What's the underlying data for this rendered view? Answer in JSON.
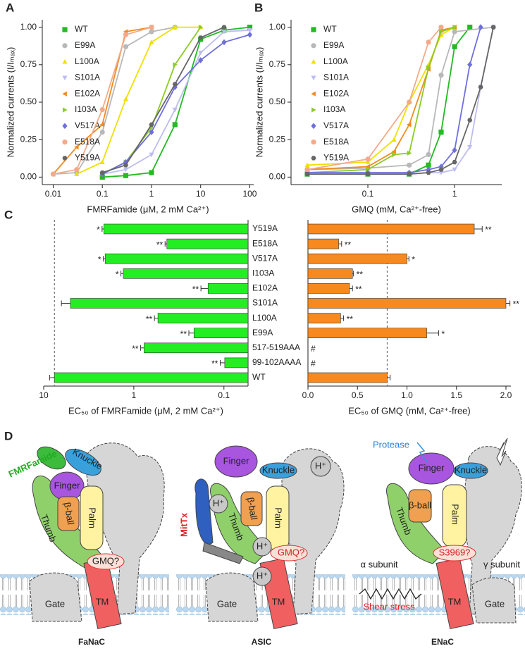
{
  "chart_data": [
    {
      "type": "line",
      "panel_label": "A",
      "xlabel": "FMRFamide (μM, 2 mM Ca²⁺)",
      "ylabel": "Normalized currents (I/Iₘₐₓ)",
      "xlog": true,
      "xlim": [
        0.006,
        120
      ],
      "xticks": [
        0.01,
        0.1,
        1,
        10,
        100
      ],
      "ylim": [
        -0.05,
        1.05
      ],
      "yticks": [
        {
          "value": 0,
          "label": "0.00"
        },
        0.25,
        {
          "value": 0.5,
          "label": "0.50"
        },
        0.75,
        {
          "value": 1,
          "label": "1.00"
        }
      ],
      "series": [
        {
          "name": "WT",
          "color": "#22bb22",
          "marker": "square",
          "x": [
            0.1,
            0.3,
            1,
            3,
            10,
            30,
            100
          ],
          "values": [
            0.0,
            0.01,
            0.03,
            0.35,
            0.92,
            0.98,
            1.0
          ]
        },
        {
          "name": "E99A",
          "color": "#b8b8b8",
          "marker": "circle",
          "x": [
            0.01,
            0.03,
            0.1,
            0.3,
            1,
            3
          ],
          "values": [
            0.02,
            0.03,
            0.3,
            0.87,
            0.97,
            1.0
          ]
        },
        {
          "name": "L100A",
          "color": "#f0e000",
          "marker": "triangle-up",
          "x": [
            0.03,
            0.1,
            0.3,
            1,
            3,
            10
          ],
          "values": [
            0.02,
            0.1,
            0.52,
            0.9,
            1.0,
            1.0
          ]
        },
        {
          "name": "S101A",
          "color": "#bcbcf0",
          "marker": "triangle-down",
          "x": [
            0.1,
            0.3,
            1,
            3,
            10,
            30,
            100
          ],
          "values": [
            0.02,
            0.05,
            0.15,
            0.45,
            0.83,
            0.97,
            0.98
          ]
        },
        {
          "name": "E102A",
          "color": "#f08c1e",
          "marker": "triangle-left",
          "x": [
            0.01,
            0.03,
            0.1,
            0.3,
            1
          ],
          "values": [
            0.02,
            0.2,
            0.35,
            0.97,
            1.0
          ]
        },
        {
          "name": "I103A",
          "color": "#8ccc22",
          "marker": "triangle-right",
          "x": [
            0.1,
            0.3,
            1,
            3,
            10
          ],
          "values": [
            0.02,
            0.1,
            0.33,
            0.75,
            1.0
          ]
        },
        {
          "name": "V517A",
          "color": "#6f6fdc",
          "marker": "diamond",
          "x": [
            0.1,
            0.3,
            1,
            3,
            10,
            30,
            100
          ],
          "values": [
            0.02,
            0.1,
            0.3,
            0.6,
            0.78,
            0.9,
            0.95
          ]
        },
        {
          "name": "E518A",
          "color": "#f4a98a",
          "marker": "circle",
          "x": [
            0.01,
            0.03,
            0.1,
            0.3,
            1
          ],
          "values": [
            0.02,
            0.05,
            0.45,
            0.95,
            1.0
          ]
        },
        {
          "name": "Y519A",
          "color": "#666666",
          "marker": "hexagon",
          "x": [
            0.1,
            0.3,
            1,
            3,
            10,
            30
          ],
          "values": [
            0.03,
            0.08,
            0.35,
            0.62,
            0.93,
            1.0
          ]
        }
      ]
    },
    {
      "type": "line",
      "panel_label": "B",
      "xlabel": "GMQ (mM, Ca²⁺-free)",
      "ylabel": "Normalized currents (I/Iₘₐₓ)",
      "xlog": true,
      "xlim": [
        0.013,
        3.5
      ],
      "xticks": [
        0.1,
        1
      ],
      "ylim": [
        -0.05,
        1.05
      ],
      "yticks": [
        {
          "value": 0,
          "label": "0.00"
        },
        0.25,
        {
          "value": 0.5,
          "label": "0.50"
        },
        0.75,
        {
          "value": 1,
          "label": "1.00"
        }
      ],
      "series": [
        {
          "name": "WT",
          "color": "#22bb22",
          "marker": "square",
          "x": [
            0.02,
            0.1,
            0.3,
            0.5,
            0.7,
            1,
            1.5
          ],
          "values": [
            0.02,
            0.02,
            0.02,
            0.08,
            0.3,
            0.87,
            1.0
          ]
        },
        {
          "name": "E99A",
          "color": "#b8b8b8",
          "marker": "circle",
          "x": [
            0.02,
            0.1,
            0.3,
            0.5,
            0.7,
            1,
            2.8
          ],
          "values": [
            0.05,
            0.06,
            0.08,
            0.15,
            0.68,
            0.97,
            1.0
          ]
        },
        {
          "name": "L100A",
          "color": "#f0e000",
          "marker": "triangle-up",
          "x": [
            0.02,
            0.1,
            0.2,
            0.3,
            0.5,
            0.7,
            1
          ],
          "values": [
            0.08,
            0.1,
            0.25,
            0.5,
            0.75,
            0.95,
            1.0
          ]
        },
        {
          "name": "S101A",
          "color": "#bcbcf0",
          "marker": "triangle-down",
          "x": [
            0.02,
            0.1,
            0.3,
            0.5,
            0.7,
            1,
            1.5,
            2,
            2.8
          ],
          "values": [
            0.02,
            0.02,
            0.02,
            0.03,
            0.03,
            0.05,
            0.2,
            0.6,
            1.0
          ]
        },
        {
          "name": "E102A",
          "color": "#f08c1e",
          "marker": "triangle-left",
          "x": [
            0.02,
            0.1,
            0.2,
            0.3,
            0.5,
            0.7,
            1
          ],
          "values": [
            0.05,
            0.07,
            0.17,
            0.35,
            0.72,
            0.98,
            1.0
          ]
        },
        {
          "name": "I103A",
          "color": "#8ccc22",
          "marker": "triangle-right",
          "x": [
            0.02,
            0.1,
            0.2,
            0.3,
            0.5,
            0.7,
            1
          ],
          "values": [
            0.03,
            0.05,
            0.15,
            0.16,
            0.73,
            0.97,
            1.0
          ]
        },
        {
          "name": "V517A",
          "color": "#6f6fdc",
          "marker": "diamond",
          "x": [
            0.02,
            0.1,
            0.3,
            0.5,
            0.7,
            1,
            1.5,
            2
          ],
          "values": [
            0.03,
            0.03,
            0.03,
            0.05,
            0.07,
            0.18,
            0.75,
            1.0
          ]
        },
        {
          "name": "E518A",
          "color": "#f4a98a",
          "marker": "circle",
          "x": [
            0.02,
            0.1,
            0.3,
            0.5,
            0.7
          ],
          "values": [
            0.05,
            0.12,
            0.5,
            0.9,
            1.0
          ]
        },
        {
          "name": "Y519A",
          "color": "#666666",
          "marker": "hexagon",
          "x": [
            0.02,
            0.1,
            0.3,
            0.5,
            0.7,
            1,
            1.5,
            2,
            2.8
          ],
          "values": [
            0.02,
            0.02,
            0.02,
            0.03,
            0.05,
            0.1,
            0.38,
            0.6,
            1.0
          ]
        }
      ]
    },
    {
      "type": "hbar",
      "panel_label": "C",
      "xlabel": "EC₅₀ of FMRFamide (μM, 2 mM Ca²⁺)",
      "color": "#22ee22",
      "xlog": true,
      "xlim": [
        10,
        0.054
      ],
      "xticks": [
        10,
        1,
        0.1
      ],
      "reference_line": true,
      "categories": [
        "Y519A",
        "E518A",
        "V517A",
        "I103A",
        "E102A",
        "S101A",
        "L100A",
        "E99A",
        "517-519AAA",
        "99-102AAAA",
        "WT"
      ],
      "values": [
        2.15,
        0.43,
        2.08,
        1.31,
        0.15,
        5.06,
        0.54,
        0.215,
        0.77,
        0.098,
        7.6
      ],
      "errors": [
        0.1,
        0.02,
        0.1,
        0.08,
        0.03,
        1.3,
        0.05,
        0.03,
        0.07,
        0.012,
        1.0
      ],
      "significance": [
        "*",
        "**",
        "*",
        "*",
        "**",
        null,
        "**",
        "**",
        "**",
        "**",
        null
      ]
    },
    {
      "type": "hbar",
      "xlabel": "EC₅₀ of GMQ (mM, Ca²⁺-free)",
      "color": "#f7891e",
      "xlog": false,
      "xlim": [
        0,
        2.05
      ],
      "xticks": [
        {
          "value": 0,
          "label": "0.0"
        },
        0.5,
        {
          "value": 1,
          "label": "1.0"
        },
        1.5,
        {
          "value": 2,
          "label": "2.0"
        }
      ],
      "reference_line": true,
      "values": [
        1.68,
        0.31,
        1.0,
        0.45,
        0.42,
        2.0,
        0.33,
        1.2,
        null,
        null,
        0.8
      ],
      "errors": [
        0.08,
        0.03,
        0.02,
        0.01,
        0.03,
        0.04,
        0.03,
        0.12,
        null,
        null,
        0.03
      ],
      "significance": [
        "**",
        "**",
        "*",
        "**",
        "**",
        "**",
        "**",
        "*",
        "#",
        "#",
        null
      ]
    }
  ],
  "diagram": {
    "panel_label": "D",
    "panels": [
      {
        "title": "FaNaC",
        "labels": [
          "FMRFamide",
          "Knuckle",
          "Finger",
          "Thumb",
          "β-ball",
          "Palm",
          "GMQ?",
          "Gate",
          "TM"
        ]
      },
      {
        "title": "ASIC",
        "labels": [
          "Finger",
          "Knuckle",
          "H⁺",
          "H⁺",
          "β-ball",
          "Palm",
          "Thumb",
          "MitTx",
          "H⁺",
          "GMQ?",
          "H⁺",
          "Gate",
          "TM"
        ]
      },
      {
        "title": "ENaC",
        "labels": [
          "Protease",
          "Finger",
          "Knuckle",
          "β-ball",
          "Palm",
          "Thumb",
          "S3969?",
          "α subunit",
          "γ subunit",
          "Shear stress",
          "Gate",
          "TM"
        ]
      }
    ]
  }
}
